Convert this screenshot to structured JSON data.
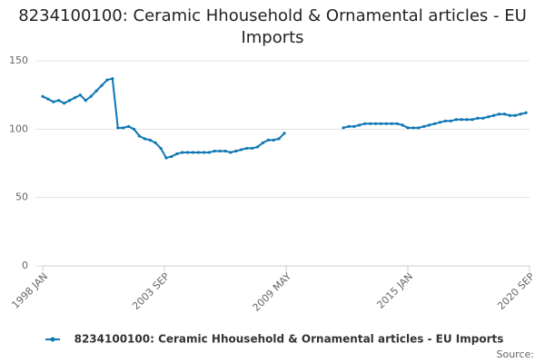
{
  "chart_data": {
    "type": "line",
    "title": "8234100100: Ceramic Hhousehold & Ornamental articles - EU Imports",
    "x": [
      "1998-01",
      "1998-04",
      "1998-07",
      "1998-10",
      "1999-01",
      "1999-04",
      "1999-07",
      "1999-10",
      "2000-01",
      "2000-04",
      "2000-07",
      "2000-10",
      "2001-01",
      "2001-04",
      "2001-07",
      "2001-10",
      "2002-01",
      "2002-04",
      "2002-07",
      "2002-10",
      "2003-01",
      "2003-04",
      "2003-07",
      "2003-10",
      "2004-01",
      "2004-04",
      "2004-07",
      "2004-10",
      "2005-01",
      "2005-04",
      "2005-07",
      "2005-10",
      "2006-01",
      "2006-04",
      "2006-07",
      "2006-10",
      "2007-01",
      "2007-04",
      "2007-07",
      "2007-10",
      "2008-01",
      "2008-04",
      "2008-07",
      "2008-10",
      "2009-01",
      "2009-04",
      "2009-07",
      "2009-10",
      "2010-01",
      "2010-04",
      "2010-07",
      "2010-10",
      "2011-01",
      "2011-04",
      "2011-07",
      "2011-10",
      "2012-01",
      "2012-04",
      "2012-07",
      "2012-10",
      "2013-01",
      "2013-04",
      "2013-07",
      "2013-10",
      "2014-01",
      "2014-04",
      "2014-07",
      "2014-10",
      "2015-01",
      "2015-04",
      "2015-07",
      "2015-10",
      "2016-01",
      "2016-04",
      "2016-07",
      "2016-10",
      "2017-01",
      "2017-04",
      "2017-07",
      "2017-10",
      "2018-01",
      "2018-04",
      "2018-07",
      "2018-10",
      "2019-01",
      "2019-04",
      "2019-07",
      "2019-10",
      "2020-01",
      "2020-04",
      "2020-07"
    ],
    "series": [
      {
        "name": "8234100100: Ceramic Hhousehold & Ornamental articles - EU Imports",
        "color": "#0e77b4",
        "values": [
          124,
          122,
          120,
          121,
          119,
          121,
          123,
          125,
          121,
          124,
          128,
          132,
          136,
          137,
          101,
          101,
          102,
          100,
          95,
          93,
          92,
          90,
          86,
          79,
          80,
          82,
          83,
          83,
          83,
          83,
          83,
          83,
          84,
          84,
          84,
          83,
          84,
          85,
          86,
          86,
          87,
          90,
          92,
          92,
          93,
          97,
          null,
          null,
          null,
          null,
          null,
          null,
          null,
          null,
          null,
          null,
          101,
          102,
          102,
          103,
          104,
          104,
          104,
          104,
          104,
          104,
          104,
          103,
          101,
          101,
          101,
          102,
          103,
          104,
          105,
          106,
          106,
          107,
          107,
          107,
          107,
          108,
          108,
          109,
          110,
          111,
          111,
          110,
          110,
          111,
          112
        ]
      }
    ],
    "xlim": [
      "1998-01",
      "2020-09"
    ],
    "xticks": [
      {
        "value": "1998-01",
        "label": "1998 JAN"
      },
      {
        "value": "2003-09",
        "label": "2003 SEP"
      },
      {
        "value": "2009-05",
        "label": "2009 MAY"
      },
      {
        "value": "2015-01",
        "label": "2015 JAN"
      },
      {
        "value": "2020-09",
        "label": "2020 SEP"
      }
    ],
    "ylim": [
      0,
      150
    ],
    "yticks": [
      0,
      50,
      100,
      150
    ],
    "grid": true,
    "source": "Source:"
  }
}
